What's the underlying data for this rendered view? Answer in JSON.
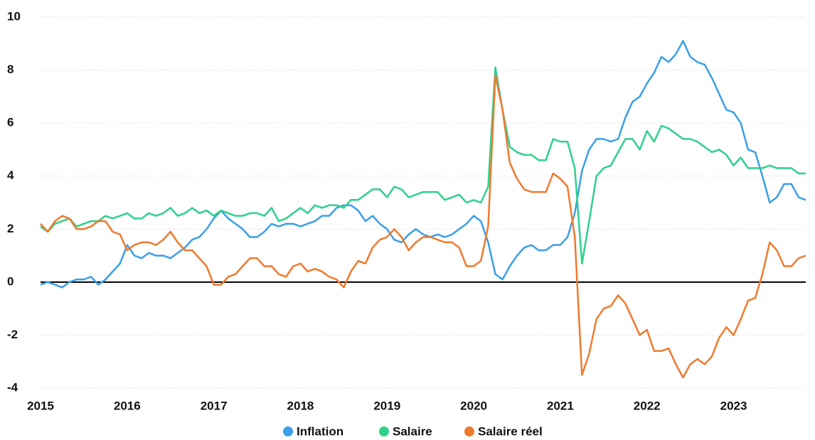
{
  "chart_data": {
    "type": "line",
    "x": [
      2015,
      2015.083,
      2015.167,
      2015.25,
      2015.333,
      2015.417,
      2015.5,
      2015.583,
      2015.667,
      2015.75,
      2015.833,
      2015.917,
      2016,
      2016.083,
      2016.167,
      2016.25,
      2016.333,
      2016.417,
      2016.5,
      2016.583,
      2016.667,
      2016.75,
      2016.833,
      2016.917,
      2017,
      2017.083,
      2017.167,
      2017.25,
      2017.333,
      2017.417,
      2017.5,
      2017.583,
      2017.667,
      2017.75,
      2017.833,
      2017.917,
      2018,
      2018.083,
      2018.167,
      2018.25,
      2018.333,
      2018.417,
      2018.5,
      2018.583,
      2018.667,
      2018.75,
      2018.833,
      2018.917,
      2019,
      2019.083,
      2019.167,
      2019.25,
      2019.333,
      2019.417,
      2019.5,
      2019.583,
      2019.667,
      2019.75,
      2019.833,
      2019.917,
      2020,
      2020.083,
      2020.167,
      2020.25,
      2020.333,
      2020.417,
      2020.5,
      2020.583,
      2020.667,
      2020.75,
      2020.833,
      2020.917,
      2021,
      2021.083,
      2021.167,
      2021.25,
      2021.333,
      2021.417,
      2021.5,
      2021.583,
      2021.667,
      2021.75,
      2021.833,
      2021.917,
      2022,
      2022.083,
      2022.167,
      2022.25,
      2022.333,
      2022.417,
      2022.5,
      2022.583,
      2022.667,
      2022.75,
      2022.833,
      2022.917,
      2023,
      2023.083,
      2023.167,
      2023.25,
      2023.333,
      2023.417,
      2023.5,
      2023.583,
      2023.667,
      2023.75,
      2023.833
    ],
    "series": [
      {
        "name": "Inflation",
        "color": "#3a9fe8",
        "values": [
          -0.1,
          0,
          -0.1,
          -0.2,
          0,
          0.1,
          0.1,
          0.2,
          -0.1,
          0.1,
          0.4,
          0.7,
          1.4,
          1.0,
          0.9,
          1.1,
          1.0,
          1.0,
          0.9,
          1.1,
          1.3,
          1.6,
          1.7,
          2.0,
          2.4,
          2.7,
          2.4,
          2.2,
          2.0,
          1.7,
          1.7,
          1.9,
          2.2,
          2.1,
          2.2,
          2.2,
          2.1,
          2.2,
          2.3,
          2.5,
          2.5,
          2.8,
          2.9,
          2.9,
          2.7,
          2.3,
          2.5,
          2.2,
          2.0,
          1.6,
          1.5,
          1.8,
          2.0,
          1.8,
          1.7,
          1.8,
          1.7,
          1.8,
          2.0,
          2.2,
          2.5,
          2.3,
          1.5,
          0.3,
          0.1,
          0.6,
          1.0,
          1.3,
          1.4,
          1.2,
          1.2,
          1.4,
          1.4,
          1.7,
          2.6,
          4.2,
          5.0,
          5.4,
          5.4,
          5.3,
          5.4,
          6.2,
          6.8,
          7.0,
          7.5,
          7.9,
          8.5,
          8.3,
          8.6,
          9.1,
          8.5,
          8.3,
          8.2,
          7.7,
          7.1,
          6.5,
          6.4,
          6.0,
          5.0,
          4.9,
          4.0,
          3.0,
          3.2,
          3.7,
          3.7,
          3.2,
          3.1
        ]
      },
      {
        "name": "Salaire",
        "color": "#2ed18a",
        "values": [
          2.1,
          1.9,
          2.2,
          2.3,
          2.4,
          2.1,
          2.2,
          2.3,
          2.3,
          2.5,
          2.4,
          2.5,
          2.6,
          2.4,
          2.4,
          2.6,
          2.5,
          2.6,
          2.8,
          2.5,
          2.6,
          2.8,
          2.6,
          2.7,
          2.5,
          2.7,
          2.6,
          2.5,
          2.5,
          2.6,
          2.6,
          2.5,
          2.8,
          2.3,
          2.4,
          2.6,
          2.8,
          2.6,
          2.9,
          2.8,
          2.9,
          2.9,
          2.8,
          3.1,
          3.1,
          3.3,
          3.5,
          3.5,
          3.2,
          3.6,
          3.5,
          3.2,
          3.3,
          3.4,
          3.4,
          3.4,
          3.1,
          3.2,
          3.3,
          3.0,
          3.1,
          3.0,
          3.6,
          8.1,
          6.5,
          5.1,
          4.9,
          4.8,
          4.8,
          4.6,
          4.6,
          5.4,
          5.3,
          5.3,
          4.3,
          0.7,
          2.3,
          4.0,
          4.3,
          4.4,
          4.9,
          5.4,
          5.4,
          5.0,
          5.7,
          5.3,
          5.9,
          5.8,
          5.6,
          5.4,
          5.4,
          5.3,
          5.1,
          4.9,
          5.0,
          4.8,
          4.4,
          4.7,
          4.3,
          4.3,
          4.3,
          4.4,
          4.3,
          4.3,
          4.3,
          4.1,
          4.1
        ]
      },
      {
        "name": "Salaire réel",
        "color": "#ee7a2e",
        "values": [
          2.2,
          1.9,
          2.3,
          2.5,
          2.4,
          2.0,
          2.0,
          2.1,
          2.3,
          2.3,
          1.9,
          1.8,
          1.2,
          1.4,
          1.5,
          1.5,
          1.4,
          1.6,
          1.9,
          1.5,
          1.2,
          1.2,
          0.9,
          0.6,
          -0.1,
          -0.1,
          0.2,
          0.3,
          0.6,
          0.9,
          0.9,
          0.6,
          0.6,
          0.3,
          0.2,
          0.6,
          0.7,
          0.4,
          0.5,
          0.4,
          0.2,
          0.1,
          -0.2,
          0.4,
          0.8,
          0.7,
          1.3,
          1.6,
          1.7,
          2.0,
          1.7,
          1.2,
          1.5,
          1.7,
          1.7,
          1.6,
          1.5,
          1.5,
          1.3,
          0.6,
          0.6,
          0.8,
          2.1,
          7.8,
          6.5,
          4.5,
          3.9,
          3.5,
          3.4,
          3.4,
          3.4,
          4.1,
          3.9,
          3.6,
          1.7,
          -3.5,
          -2.7,
          -1.4,
          -1.0,
          -0.9,
          -0.5,
          -0.8,
          -1.4,
          -2.0,
          -1.8,
          -2.6,
          -2.6,
          -2.5,
          -3.1,
          -3.6,
          -3.1,
          -2.9,
          -3.1,
          -2.8,
          -2.1,
          -1.7,
          -2.0,
          -1.4,
          -0.7,
          -0.6,
          0.3,
          1.5,
          1.2,
          0.6,
          0.6,
          0.9,
          1.0
        ]
      }
    ],
    "xlim": [
      2015,
      2023.833
    ],
    "xticks": [
      2015,
      2016,
      2017,
      2018,
      2019,
      2020,
      2021,
      2022,
      2023
    ],
    "ylim": [
      -4,
      10
    ],
    "yticks": [
      -4,
      -2,
      0,
      2,
      4,
      6,
      8,
      10
    ],
    "grid": true
  }
}
